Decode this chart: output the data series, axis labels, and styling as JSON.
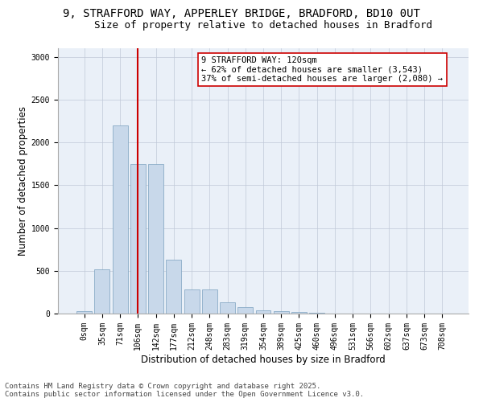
{
  "title_line1": "9, STRAFFORD WAY, APPERLEY BRIDGE, BRADFORD, BD10 0UT",
  "title_line2": "Size of property relative to detached houses in Bradford",
  "xlabel": "Distribution of detached houses by size in Bradford",
  "ylabel": "Number of detached properties",
  "categories": [
    "0sqm",
    "35sqm",
    "71sqm",
    "106sqm",
    "142sqm",
    "177sqm",
    "212sqm",
    "248sqm",
    "283sqm",
    "319sqm",
    "354sqm",
    "389sqm",
    "425sqm",
    "460sqm",
    "496sqm",
    "531sqm",
    "566sqm",
    "602sqm",
    "637sqm",
    "673sqm",
    "708sqm"
  ],
  "bar_heights": [
    25,
    520,
    2200,
    1750,
    1750,
    630,
    280,
    280,
    130,
    75,
    40,
    25,
    15,
    10,
    0,
    0,
    0,
    0,
    0,
    0,
    0
  ],
  "bar_color": "#c8d8ea",
  "bar_edge_color": "#7aa0be",
  "vline_x": 3,
  "vline_color": "#cc0000",
  "annotation_text": "9 STRAFFORD WAY: 120sqm\n← 62% of detached houses are smaller (3,543)\n37% of semi-detached houses are larger (2,080) →",
  "annotation_box_color": "#ffffff",
  "annotation_border_color": "#cc0000",
  "ylim": [
    0,
    3100
  ],
  "yticks": [
    0,
    500,
    1000,
    1500,
    2000,
    2500,
    3000
  ],
  "grid_color": "#c0c8d8",
  "bg_color": "#eaf0f8",
  "footer_line1": "Contains HM Land Registry data © Crown copyright and database right 2025.",
  "footer_line2": "Contains public sector information licensed under the Open Government Licence v3.0.",
  "title_fontsize": 10,
  "subtitle_fontsize": 9,
  "axis_label_fontsize": 8.5,
  "tick_fontsize": 7,
  "annotation_fontsize": 7.5,
  "footer_fontsize": 6.5
}
